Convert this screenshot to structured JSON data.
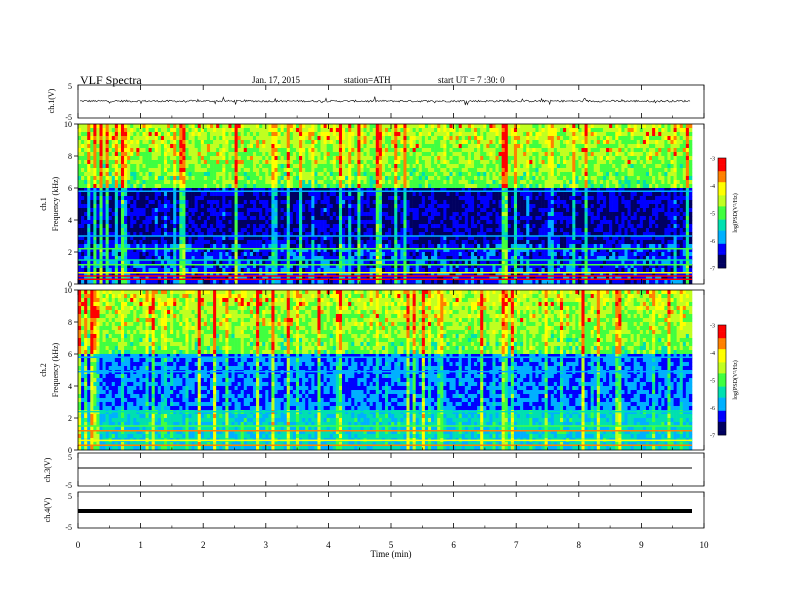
{
  "header": {
    "title": "VLF  Spectra",
    "date": "Jan. 17, 2015",
    "station": "station=ATH",
    "start_ut": "start  UT  =   7  :30: 0"
  },
  "chart_data": [
    {
      "type": "line",
      "panel": "ch1-waveform",
      "ylabel": "ch.1(V)",
      "yticks": [
        "5",
        "-5"
      ],
      "ylim": [
        -5,
        5
      ],
      "xlim": [
        0,
        10
      ],
      "series_color": "#000000"
    },
    {
      "type": "heatmap",
      "panel": "ch1-spectrogram",
      "ylabel_channel": "ch.1",
      "ylabel": "Frequency  (kHz)",
      "yticks": [
        "0",
        "2",
        "4",
        "6",
        "8",
        "10"
      ],
      "ylim": [
        0,
        10
      ],
      "xlim": [
        0,
        9.8
      ],
      "colorbar": {
        "label": "log(PSD(V²/Hz)",
        "ticks": [
          "-3",
          "-4",
          "-5",
          "-6",
          "-7"
        ],
        "range": [
          -7,
          -3
        ],
        "colors": [
          "#000060",
          "#0000ff",
          "#00b0ff",
          "#00e0b0",
          "#40ff40",
          "#c0ff20",
          "#ffff00",
          "#ff8000",
          "#ff0000",
          "#ffffff"
        ]
      }
    },
    {
      "type": "heatmap",
      "panel": "ch2-spectrogram",
      "ylabel_channel": "ch.2",
      "ylabel": "Frequency  (kHz)",
      "yticks": [
        "0",
        "2",
        "4",
        "6",
        "8",
        "10"
      ],
      "ylim": [
        0,
        10
      ],
      "xlim": [
        0,
        9.8
      ],
      "colorbar": {
        "label": "log(PSD(V²/Hz)",
        "ticks": [
          "-3",
          "-4",
          "-5",
          "-6",
          "-7"
        ],
        "range": [
          -7,
          -3
        ]
      }
    },
    {
      "type": "line",
      "panel": "ch3-waveform",
      "ylabel": "ch.3(V)",
      "yticks": [
        "5",
        "-5"
      ],
      "ylim": [
        -5,
        5
      ]
    },
    {
      "type": "line",
      "panel": "ch4-waveform",
      "ylabel": "ch.4(V)",
      "yticks": [
        "5",
        "-5"
      ],
      "ylim": [
        -5,
        5
      ]
    }
  ],
  "x_axis": {
    "label": "Time  (min)",
    "ticks": [
      "0",
      "1",
      "2",
      "3",
      "4",
      "5",
      "6",
      "7",
      "8",
      "9",
      "10"
    ],
    "range": [
      0,
      10
    ]
  }
}
